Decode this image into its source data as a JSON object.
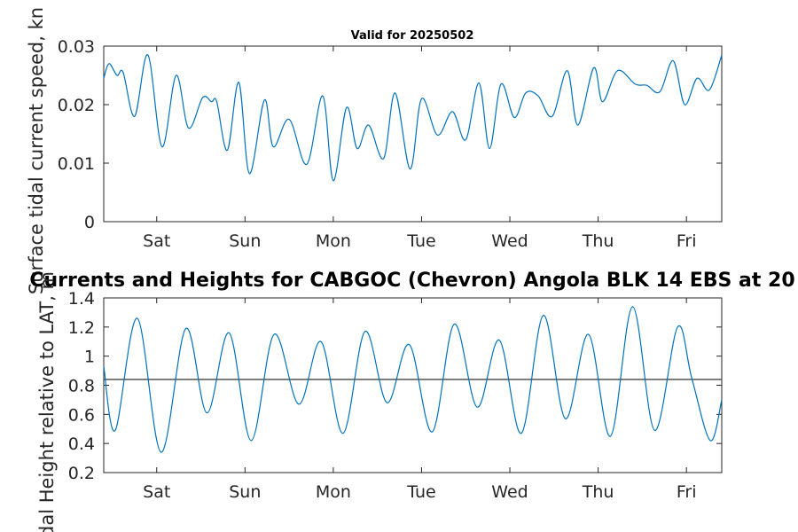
{
  "chart_data": [
    {
      "type": "line",
      "title": "Valid for 20250502",
      "ylabel": "Surface tidal current speed, kn",
      "xlim": [
        0,
        7
      ],
      "ylim": [
        0,
        0.03
      ],
      "y_ticks": [
        "0",
        "0.01",
        "0.02",
        "0.03"
      ],
      "x_ticks": [
        "Sat",
        "Sun",
        "Mon",
        "Tue",
        "Wed",
        "Thu",
        "Fri"
      ],
      "x_tick_positions": [
        0.6,
        1.6,
        2.6,
        3.6,
        4.6,
        5.6,
        6.6
      ],
      "grid": false,
      "color": "#0072BD",
      "series": [
        {
          "x": [
            0,
            0.06,
            0.15,
            0.22,
            0.35,
            0.5,
            0.66,
            0.82,
            0.96,
            1.12,
            1.22,
            1.28,
            1.4,
            1.53,
            1.65,
            1.82,
            1.92,
            2.1,
            2.3,
            2.48,
            2.6,
            2.75,
            2.87,
            3.0,
            3.17,
            3.3,
            3.47,
            3.6,
            3.78,
            3.95,
            4.1,
            4.25,
            4.37,
            4.5,
            4.65,
            4.78,
            4.92,
            5.08,
            5.25,
            5.37,
            5.55,
            5.65,
            5.82,
            6.02,
            6.15,
            6.3,
            6.45,
            6.58,
            6.72,
            6.86,
            7.0
          ],
          "y": [
            0.0245,
            0.027,
            0.025,
            0.0255,
            0.018,
            0.0285,
            0.0128,
            0.025,
            0.016,
            0.0212,
            0.0205,
            0.0205,
            0.0122,
            0.0238,
            0.0082,
            0.0208,
            0.0128,
            0.0175,
            0.0098,
            0.0215,
            0.007,
            0.0195,
            0.0125,
            0.0165,
            0.0108,
            0.022,
            0.009,
            0.021,
            0.0148,
            0.0188,
            0.014,
            0.0237,
            0.0125,
            0.0235,
            0.0178,
            0.022,
            0.0215,
            0.018,
            0.0258,
            0.0165,
            0.0263,
            0.0205,
            0.0258,
            0.0235,
            0.0233,
            0.0222,
            0.0275,
            0.02,
            0.0245,
            0.0225,
            0.0285
          ]
        }
      ]
    },
    {
      "type": "line",
      "title": "Currents and Heights for CABGOC (Chevron)  Angola BLK 14  EBS at 20",
      "ylabel": "Tidal Height relative to LAT, m",
      "xlim": [
        0,
        7
      ],
      "ylim": [
        0.2,
        1.4
      ],
      "y_ticks": [
        "0.2",
        "0.4",
        "0.6",
        "0.8",
        "1",
        "1.2",
        "1.4"
      ],
      "x_ticks": [
        "Sat",
        "Sun",
        "Mon",
        "Tue",
        "Wed",
        "Thu",
        "Fri"
      ],
      "x_tick_positions": [
        0.6,
        1.6,
        2.6,
        3.6,
        4.6,
        5.6,
        6.6
      ],
      "grid": false,
      "color": "#0072BD",
      "reference_line": 0.84,
      "reference_color": "#444444",
      "series": [
        {
          "x": [
            0,
            0.13,
            0.38,
            0.65,
            0.93,
            1.17,
            1.42,
            1.67,
            1.93,
            2.21,
            2.46,
            2.71,
            2.96,
            3.21,
            3.46,
            3.72,
            3.97,
            4.23,
            4.48,
            4.73,
            4.98,
            5.23,
            5.49,
            5.74,
            5.99,
            6.24,
            6.5,
            6.66,
            6.87,
            7.0
          ],
          "y": [
            0.93,
            0.49,
            1.26,
            0.34,
            1.19,
            0.61,
            1.16,
            0.42,
            1.15,
            0.67,
            1.1,
            0.47,
            1.17,
            0.68,
            1.08,
            0.48,
            1.22,
            0.65,
            1.11,
            0.47,
            1.28,
            0.57,
            1.15,
            0.45,
            1.34,
            0.49,
            1.2,
            0.85,
            0.42,
            0.7
          ]
        }
      ]
    }
  ]
}
